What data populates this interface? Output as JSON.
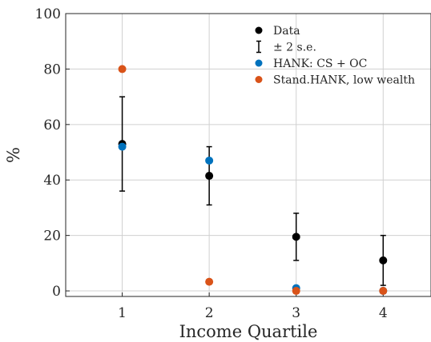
{
  "chart_data": {
    "type": "scatter",
    "title": "",
    "xlabel": "Income Quartile",
    "ylabel": "%",
    "xlim": [
      0.35,
      4.55
    ],
    "ylim": [
      -2,
      100
    ],
    "grid": true,
    "xticks": [
      1,
      2,
      3,
      4
    ],
    "yticks": [
      0,
      20,
      40,
      60,
      80,
      100
    ],
    "legend_position": "top-right",
    "series": [
      {
        "name": "Data",
        "color": "#000000",
        "x": [
          1,
          2,
          3,
          4
        ],
        "y": [
          53,
          41.5,
          19.5,
          11
        ]
      },
      {
        "name": "± 2 s.e.",
        "type": "errorbar",
        "color": "#000000",
        "x": [
          1,
          2,
          3,
          4
        ],
        "lower": [
          36,
          31,
          11,
          2
        ],
        "upper": [
          70,
          52,
          28,
          20
        ]
      },
      {
        "name": "HANK: CS + OC",
        "color": "#0072BD",
        "x": [
          1,
          2,
          3,
          4
        ],
        "y": [
          52,
          47,
          1,
          0
        ]
      },
      {
        "name": "Stand.HANK, low wealth",
        "color": "#D95319",
        "x": [
          1,
          2,
          3,
          4
        ],
        "y": [
          80,
          3.3,
          0,
          0
        ]
      }
    ]
  }
}
